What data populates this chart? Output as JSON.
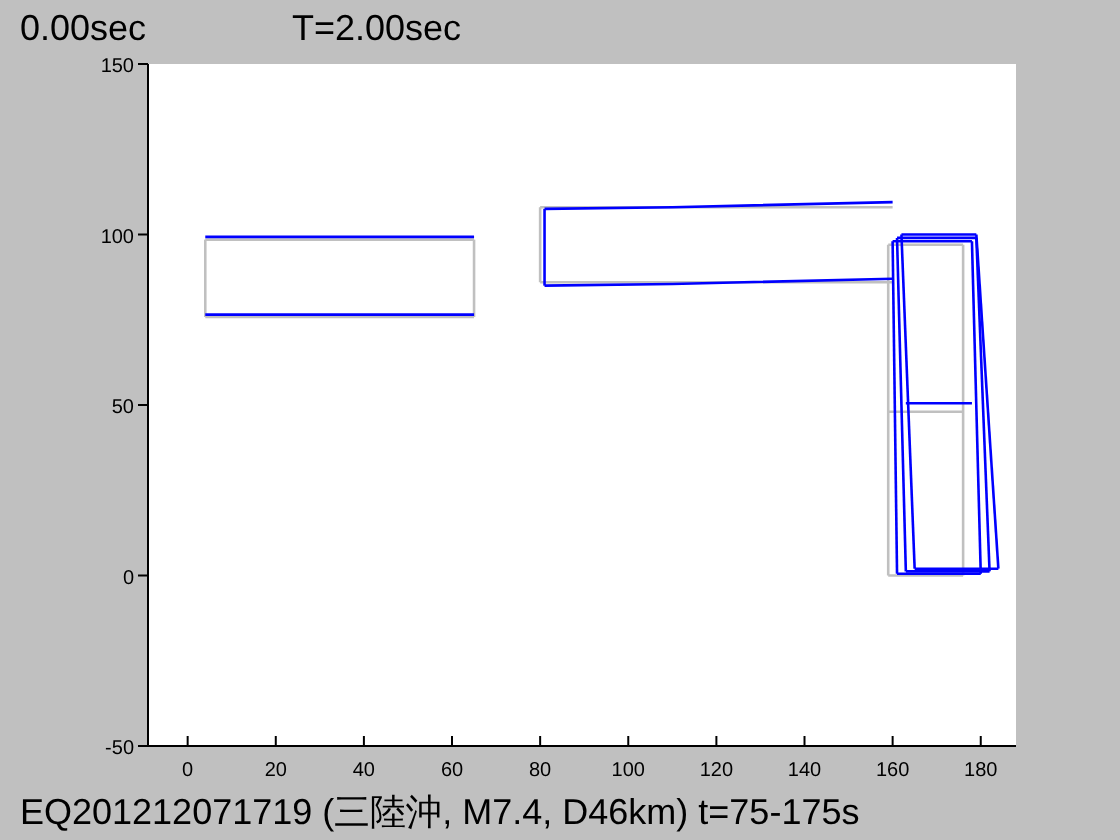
{
  "chart_data": {
    "type": "line",
    "title": "0.00sec",
    "subtitle": "T=2.00sec",
    "annotations": [
      "EQ201212071719 (三陸沖, M7.4, D46km) t=75-175s"
    ],
    "xlim": [
      -9,
      188
    ],
    "ylim": [
      -50,
      150
    ],
    "xticks": [
      0,
      20,
      40,
      60,
      80,
      100,
      120,
      140,
      160,
      180
    ],
    "yticks": [
      -50,
      0,
      50,
      100,
      150
    ],
    "series": [
      {
        "color": "#c0c0c0",
        "x": [
          4,
          65
        ],
        "values": [
          98.5,
          98.5
        ]
      },
      {
        "color": "#c0c0c0",
        "x": [
          4,
          65
        ],
        "values": [
          75.8,
          75.8
        ]
      },
      {
        "color": "#c0c0c0",
        "x": [
          4,
          4
        ],
        "values": [
          75.8,
          98.5
        ]
      },
      {
        "color": "#c0c0c0",
        "x": [
          65,
          65
        ],
        "values": [
          75.8,
          98.5
        ]
      },
      {
        "color": "#c0c0c0",
        "x": [
          80,
          160
        ],
        "values": [
          108,
          108
        ]
      },
      {
        "color": "#c0c0c0",
        "x": [
          80,
          160
        ],
        "values": [
          86,
          86
        ]
      },
      {
        "color": "#c0c0c0",
        "x": [
          80,
          80
        ],
        "values": [
          86,
          108
        ]
      },
      {
        "color": "#c0c0c0",
        "x": [
          159,
          176
        ],
        "values": [
          97,
          97
        ]
      },
      {
        "color": "#c0c0c0",
        "x": [
          159,
          176
        ],
        "values": [
          0,
          0
        ]
      },
      {
        "color": "#c0c0c0",
        "x": [
          159,
          159
        ],
        "values": [
          0,
          97
        ]
      },
      {
        "color": "#c0c0c0",
        "x": [
          176,
          176
        ],
        "values": [
          0,
          97
        ]
      },
      {
        "color": "#c0c0c0",
        "x": [
          159,
          176
        ],
        "values": [
          48,
          48
        ]
      },
      {
        "color": "#0000ff",
        "x": [
          4,
          65
        ],
        "values": [
          99.3,
          99.3
        ]
      },
      {
        "color": "#0000ff",
        "x": [
          4,
          65
        ],
        "values": [
          76.5,
          76.5
        ]
      },
      {
        "color": "#0000ff",
        "x": [
          81,
          81
        ],
        "values": [
          85,
          107.5
        ]
      },
      {
        "color": "#0000ff",
        "x": [
          81,
          110,
          160
        ],
        "values": [
          107.5,
          108,
          109.5
        ]
      },
      {
        "color": "#0000ff",
        "x": [
          81,
          110,
          160
        ],
        "values": [
          85,
          85.5,
          87
        ]
      },
      {
        "color": "#0000ff",
        "x": [
          160,
          178
        ],
        "values": [
          98,
          98
        ]
      },
      {
        "color": "#0000ff",
        "x": [
          161,
          180
        ],
        "values": [
          0.5,
          0.5
        ]
      },
      {
        "color": "#0000ff",
        "x": [
          161,
          160
        ],
        "values": [
          0.5,
          98
        ]
      },
      {
        "color": "#0000ff",
        "x": [
          180,
          178
        ],
        "values": [
          0.5,
          98
        ]
      },
      {
        "color": "#0000ff",
        "x": [
          161,
          179
        ],
        "values": [
          99,
          99
        ]
      },
      {
        "color": "#0000ff",
        "x": [
          163,
          182
        ],
        "values": [
          1.2,
          1.2
        ]
      },
      {
        "color": "#0000ff",
        "x": [
          163,
          161
        ],
        "values": [
          1.2,
          99
        ]
      },
      {
        "color": "#0000ff",
        "x": [
          182,
          179
        ],
        "values": [
          1.2,
          99
        ]
      },
      {
        "color": "#0000ff",
        "x": [
          162,
          179
        ],
        "values": [
          100,
          100
        ]
      },
      {
        "color": "#0000ff",
        "x": [
          165,
          184
        ],
        "values": [
          2,
          2
        ]
      },
      {
        "color": "#0000ff",
        "x": [
          165,
          162
        ],
        "values": [
          2,
          100
        ]
      },
      {
        "color": "#0000ff",
        "x": [
          184,
          179
        ],
        "values": [
          2,
          100
        ]
      },
      {
        "color": "#0000ff",
        "x": [
          163,
          178
        ],
        "values": [
          50.5,
          50.5
        ]
      }
    ]
  }
}
